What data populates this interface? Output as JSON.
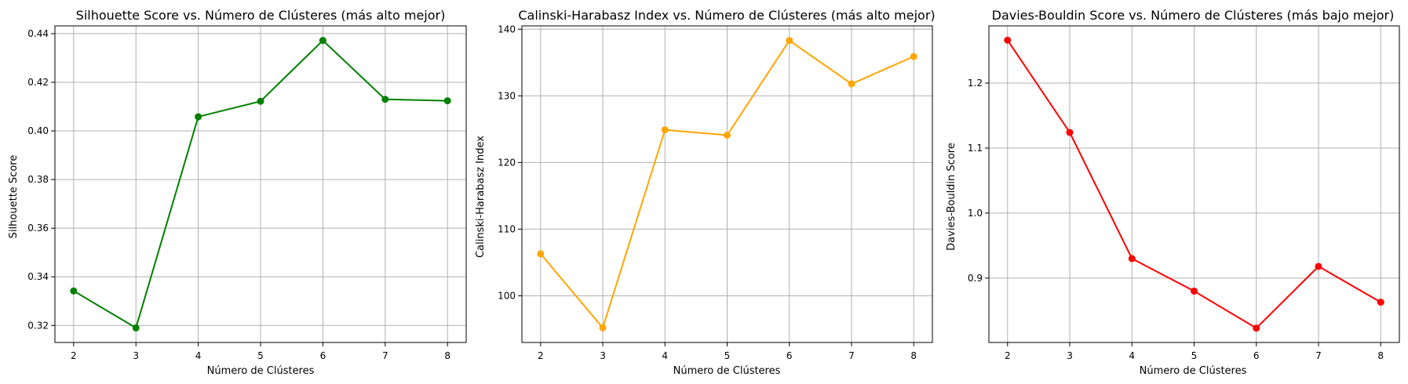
{
  "chart_data": [
    {
      "type": "line",
      "title": "Silhouette Score vs. Número de Clústeres (más alto mejor)",
      "xlabel": "Número de Clústeres",
      "ylabel": "Silhouette Score",
      "x": [
        2,
        3,
        4,
        5,
        6,
        7,
        8
      ],
      "y": [
        0.3342,
        0.319,
        0.4058,
        0.4122,
        0.4372,
        0.413,
        0.4124
      ],
      "color": "#008000",
      "marker": "circle",
      "grid": true,
      "xlim": [
        1.7,
        8.3
      ],
      "ylim": [
        0.313,
        0.4432
      ],
      "xticks": [
        2,
        3,
        4,
        5,
        6,
        7,
        8
      ],
      "yticks": [
        0.32,
        0.34,
        0.36,
        0.38,
        0.4,
        0.42,
        0.44
      ],
      "ytick_labels": [
        "0.32",
        "0.34",
        "0.36",
        "0.38",
        "0.40",
        "0.42",
        "0.44"
      ]
    },
    {
      "type": "line",
      "title": "Calinski-Harabasz Index vs. Número de Clústeres (más alto mejor)",
      "xlabel": "Número de Clústeres",
      "ylabel": "Calinski-Harabasz Index",
      "x": [
        2,
        3,
        4,
        5,
        6,
        7,
        8
      ],
      "y": [
        106.3,
        95.2,
        124.9,
        124.1,
        138.3,
        131.8,
        135.9
      ],
      "color": "#ffa500",
      "marker": "circle",
      "grid": true,
      "xlim": [
        1.7,
        8.3
      ],
      "ylim": [
        93.0,
        140.5
      ],
      "xticks": [
        2,
        3,
        4,
        5,
        6,
        7,
        8
      ],
      "yticks": [
        100,
        110,
        120,
        130,
        140
      ],
      "ytick_labels": [
        "100",
        "110",
        "120",
        "130",
        "140"
      ]
    },
    {
      "type": "line",
      "title": "Davies-Bouldin Score vs. Número de Clústeres (más bajo mejor)",
      "xlabel": "Número de Clústeres",
      "ylabel": "Davies-Bouldin Score",
      "x": [
        2,
        3,
        4,
        5,
        6,
        7,
        8
      ],
      "y": [
        1.266,
        1.124,
        0.93,
        0.88,
        0.823,
        0.918,
        0.863
      ],
      "color": "#ff0000",
      "marker": "circle",
      "grid": true,
      "xlim": [
        1.7,
        8.3
      ],
      "ylim": [
        0.801,
        1.288
      ],
      "xticks": [
        2,
        3,
        4,
        5,
        6,
        7,
        8
      ],
      "yticks": [
        0.9,
        1.0,
        1.1,
        1.2
      ],
      "ytick_labels": [
        "0.9",
        "1.0",
        "1.1",
        "1.2"
      ]
    }
  ]
}
